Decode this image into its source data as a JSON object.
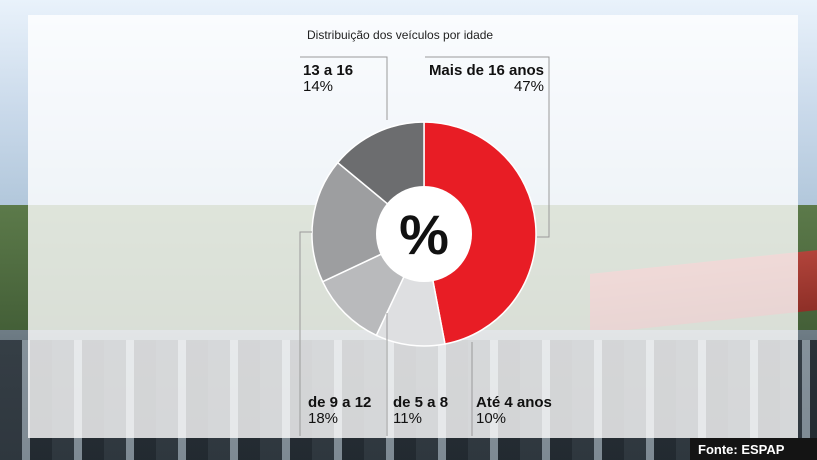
{
  "chart_data": {
    "type": "pie",
    "title": "Distribuição dos veículos por idade",
    "center_label": "%",
    "slices": [
      {
        "name": "Mais de 16 anos",
        "value": 47,
        "label": "47%",
        "color": "#e81d25"
      },
      {
        "name": "Até 4 anos",
        "value": 10,
        "label": "10%",
        "color": "#dedfe1"
      },
      {
        "name": "de 5 a 8",
        "value": 11,
        "label": "11%",
        "color": "#b9babc"
      },
      {
        "name": "de 9 a 12",
        "value": 18,
        "label": "18%",
        "color": "#9d9ea0"
      },
      {
        "name": "13 a 16",
        "value": 14,
        "label": "14%",
        "color": "#6c6d6f"
      }
    ]
  },
  "source": "Fonte: ESPAP"
}
